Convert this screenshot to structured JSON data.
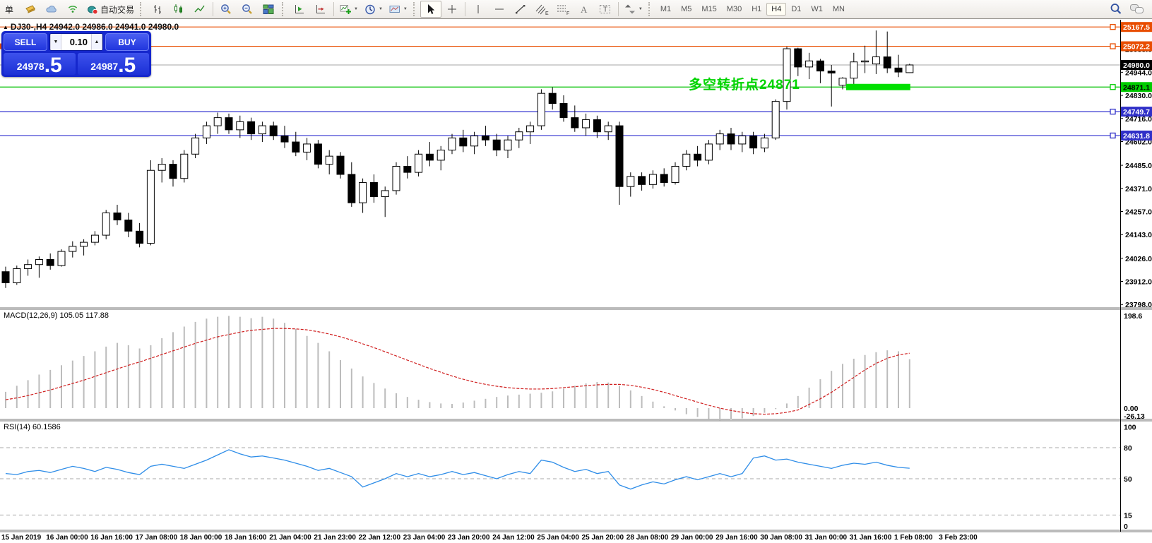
{
  "toolbar": {
    "new_order_label": "单",
    "autotrade_label": "自动交易",
    "timeframes": [
      "M1",
      "M5",
      "M15",
      "M30",
      "H1",
      "H4",
      "D1",
      "W1",
      "MN"
    ],
    "active_timeframe": "H4",
    "glyphs": {
      "channel": "E",
      "fibo": "F",
      "text": "A",
      "label": "T"
    }
  },
  "trade_panel": {
    "sell_label": "SELL",
    "buy_label": "BUY",
    "volume": "0.10",
    "sell_price_main": "24978",
    "sell_price_big": ".5",
    "buy_price_main": "24987",
    "buy_price_big": ".5"
  },
  "chart": {
    "title": "DJ30-,H4  24942.0 24986.0 24941.0 24980.0",
    "symbol": "DJ30-",
    "period": "H4",
    "ohlc": {
      "open": "24942.0",
      "high": "24986.0",
      "low": "24941.0",
      "close": "24980.0"
    },
    "annotation": {
      "text": "多空转折点24871",
      "color": "#00D400"
    },
    "highlight_bar": {
      "start_index": 75,
      "end_index": 81,
      "price": 24871.1,
      "color": "#00E000"
    },
    "hlines": [
      {
        "price": 25167.5,
        "label": "25167.5",
        "color": "#E84D00",
        "line_color": "#E84D00",
        "text_color": "#ffffff",
        "handle": true
      },
      {
        "price": 25072.2,
        "label": "25072.2",
        "color": "#E84D00",
        "line_color": "#E84D00",
        "text_color": "#ffffff",
        "handle": true
      },
      {
        "price": 24980.0,
        "label": "24980.0",
        "color": "#000000",
        "line_color": "#B8B8B8",
        "text_color": "#ffffff",
        "handle": false
      },
      {
        "price": 24871.1,
        "label": "24871.1",
        "color": "#00CC00",
        "line_color": "#00C000",
        "text_color": "#000000",
        "handle": true
      },
      {
        "price": 24749.7,
        "label": "24749.7",
        "color": "#3030C8",
        "line_color": "#3535D0",
        "text_color": "#ffffff",
        "handle": true
      },
      {
        "price": 24631.8,
        "label": "24631.8",
        "color": "#3030C8",
        "line_color": "#3535D0",
        "text_color": "#ffffff",
        "handle": true
      }
    ],
    "price_ticks": [
      "25058.0",
      "24944.0",
      "24830.0",
      "24716.0",
      "24602.0",
      "24485.0",
      "24371.0",
      "24257.0",
      "24143.0",
      "24026.0",
      "23912.0",
      "23798.0"
    ],
    "price_tick_values": [
      25058,
      24944,
      24830,
      24716,
      24602,
      24485,
      24371,
      24257,
      24143,
      24026,
      23912,
      23798
    ],
    "candles": [
      [
        23960,
        23985,
        23880,
        23905
      ],
      [
        23905,
        23990,
        23895,
        23975
      ],
      [
        23975,
        24020,
        23940,
        23995
      ],
      [
        23995,
        24035,
        23930,
        24020
      ],
      [
        24020,
        24050,
        23970,
        23990
      ],
      [
        23990,
        24070,
        23985,
        24060
      ],
      [
        24060,
        24110,
        24030,
        24085
      ],
      [
        24085,
        24120,
        24040,
        24105
      ],
      [
        24105,
        24160,
        24090,
        24140
      ],
      [
        24140,
        24265,
        24120,
        24250
      ],
      [
        24250,
        24290,
        24190,
        24215
      ],
      [
        24215,
        24250,
        24130,
        24160
      ],
      [
        24160,
        24200,
        24080,
        24100
      ],
      [
        24100,
        24510,
        24090,
        24460
      ],
      [
        24460,
        24520,
        24400,
        24490
      ],
      [
        24490,
        24510,
        24380,
        24420
      ],
      [
        24420,
        24560,
        24400,
        24540
      ],
      [
        24540,
        24640,
        24520,
        24620
      ],
      [
        24620,
        24700,
        24590,
        24680
      ],
      [
        24680,
        24745,
        24640,
        24720
      ],
      [
        24720,
        24740,
        24640,
        24660
      ],
      [
        24660,
        24730,
        24620,
        24700
      ],
      [
        24700,
        24720,
        24610,
        24640
      ],
      [
        24640,
        24700,
        24600,
        24680
      ],
      [
        24680,
        24700,
        24610,
        24630
      ],
      [
        24630,
        24680,
        24570,
        24600
      ],
      [
        24600,
        24650,
        24530,
        24550
      ],
      [
        24550,
        24620,
        24510,
        24590
      ],
      [
        24590,
        24610,
        24470,
        24490
      ],
      [
        24490,
        24560,
        24440,
        24530
      ],
      [
        24530,
        24550,
        24420,
        24440
      ],
      [
        24440,
        24500,
        24280,
        24300
      ],
      [
        24300,
        24420,
        24250,
        24400
      ],
      [
        24400,
        24440,
        24300,
        24330
      ],
      [
        24330,
        24380,
        24230,
        24360
      ],
      [
        24360,
        24500,
        24340,
        24480
      ],
      [
        24480,
        24530,
        24420,
        24450
      ],
      [
        24450,
        24560,
        24430,
        24540
      ],
      [
        24540,
        24600,
        24480,
        24510
      ],
      [
        24510,
        24580,
        24460,
        24560
      ],
      [
        24560,
        24640,
        24540,
        24620
      ],
      [
        24620,
        24660,
        24550,
        24580
      ],
      [
        24580,
        24650,
        24540,
        24630
      ],
      [
        24630,
        24680,
        24580,
        24610
      ],
      [
        24610,
        24640,
        24530,
        24560
      ],
      [
        24560,
        24630,
        24520,
        24610
      ],
      [
        24610,
        24670,
        24570,
        24650
      ],
      [
        24650,
        24700,
        24590,
        24680
      ],
      [
        24680,
        24860,
        24660,
        24840
      ],
      [
        24840,
        24870,
        24760,
        24790
      ],
      [
        24790,
        24830,
        24700,
        24720
      ],
      [
        24720,
        24780,
        24650,
        24670
      ],
      [
        24670,
        24740,
        24630,
        24710
      ],
      [
        24710,
        24730,
        24620,
        24650
      ],
      [
        24650,
        24700,
        24610,
        24680
      ],
      [
        24680,
        24700,
        24290,
        24380
      ],
      [
        24380,
        24450,
        24330,
        24430
      ],
      [
        24430,
        24450,
        24360,
        24390
      ],
      [
        24390,
        24460,
        24370,
        24440
      ],
      [
        24440,
        24470,
        24380,
        24400
      ],
      [
        24400,
        24500,
        24390,
        24480
      ],
      [
        24480,
        24560,
        24460,
        24540
      ],
      [
        24540,
        24580,
        24480,
        24510
      ],
      [
        24510,
        24610,
        24490,
        24590
      ],
      [
        24590,
        24660,
        24560,
        24640
      ],
      [
        24640,
        24670,
        24560,
        24590
      ],
      [
        24590,
        24650,
        24550,
        24630
      ],
      [
        24630,
        24650,
        24540,
        24570
      ],
      [
        24570,
        24640,
        24550,
        24620
      ],
      [
        24620,
        24810,
        24610,
        24800
      ],
      [
        24800,
        25070,
        24760,
        25060
      ],
      [
        25060,
        25065,
        24925,
        24970
      ],
      [
        24970,
        25040,
        24910,
        25000
      ],
      [
        25000,
        25010,
        24890,
        24950
      ],
      [
        24950,
        24980,
        24775,
        24940
      ],
      [
        24880,
        24920,
        24860,
        24915
      ],
      [
        24915,
        25040,
        24880,
        24995
      ],
      [
        24995,
        25075,
        24940,
        25000
      ],
      [
        24985,
        25150,
        24935,
        25020
      ],
      [
        25020,
        25145,
        24940,
        24965
      ],
      [
        24965,
        25030,
        24920,
        24945
      ],
      [
        24942,
        24986,
        24941,
        24980
      ]
    ]
  },
  "macd": {
    "label": "MACD(12,26,9) 105.05 117.88",
    "axis_labels": [
      {
        "v": 198.6,
        "t": "198.6"
      },
      {
        "v": 0,
        "t": "0.00"
      },
      {
        "v": -26.13,
        "t": "-26.13"
      }
    ],
    "histogram": [
      35,
      48,
      60,
      72,
      82,
      92,
      102,
      112,
      122,
      132,
      140,
      135,
      128,
      135,
      150,
      163,
      175,
      185,
      192,
      196,
      198,
      196,
      193,
      196,
      192,
      183,
      170,
      155,
      140,
      122,
      103,
      85,
      68,
      54,
      42,
      32,
      24,
      18,
      13,
      10,
      9,
      12,
      16,
      20,
      24,
      27,
      29,
      31,
      33,
      36,
      42,
      48,
      53,
      56,
      55,
      48,
      38,
      26,
      14,
      4,
      -5,
      -13,
      -19,
      -23,
      -26,
      -25,
      -22,
      -17,
      -10,
      -2,
      10,
      26,
      44,
      62,
      80,
      95,
      106,
      114,
      120,
      124,
      122,
      105
    ],
    "signal": [
      18,
      22,
      27,
      33,
      39,
      46,
      53,
      60,
      68,
      76,
      84,
      92,
      99,
      107,
      115,
      123,
      131,
      139,
      146,
      153,
      158,
      163,
      167,
      169,
      171,
      171,
      170,
      168,
      164,
      159,
      153,
      146,
      138,
      130,
      121,
      112,
      103,
      94,
      85,
      77,
      69,
      62,
      56,
      51,
      47,
      44,
      42,
      41,
      41,
      42,
      44,
      46,
      48,
      50,
      51,
      51,
      49,
      45,
      40,
      34,
      27,
      20,
      13,
      6,
      0,
      -5,
      -9,
      -12,
      -13,
      -12,
      -9,
      -4,
      8,
      20,
      34,
      50,
      66,
      82,
      96,
      107,
      114,
      117.88
    ]
  },
  "rsi": {
    "label": "RSI(14) 60.1586",
    "axis_labels": [
      {
        "v": 100,
        "t": "100"
      },
      {
        "v": 80,
        "t": "80"
      },
      {
        "v": 50,
        "t": "50"
      },
      {
        "v": 15,
        "t": "15"
      },
      {
        "v": 0,
        "t": "0"
      }
    ],
    "levels": [
      80,
      50,
      15
    ],
    "values": [
      55,
      54,
      57,
      58,
      56,
      59,
      62,
      60,
      57,
      61,
      59,
      56,
      54,
      62,
      64,
      62,
      60,
      64,
      68,
      73,
      78,
      74,
      71,
      72,
      70,
      68,
      65,
      62,
      58,
      60,
      56,
      52,
      42,
      46,
      50,
      55,
      52,
      55,
      52,
      54,
      57,
      54,
      56,
      53,
      50,
      54,
      57,
      55,
      68,
      66,
      61,
      57,
      59,
      55,
      57,
      44,
      40,
      44,
      47,
      45,
      49,
      52,
      49,
      52,
      55,
      52,
      55,
      70,
      72,
      68,
      69,
      66,
      64,
      62,
      60,
      63,
      65,
      64,
      66,
      63,
      61,
      60.16
    ]
  },
  "time_axis": {
    "labels": [
      "15 Jan 2019",
      "16 Jan 00:00",
      "16 Jan 16:00",
      "17 Jan 08:00",
      "18 Jan 00:00",
      "18 Jan 16:00",
      "21 Jan 04:00",
      "21 Jan 23:00",
      "22 Jan 12:00",
      "23 Jan 04:00",
      "23 Jan 20:00",
      "24 Jan 12:00",
      "25 Jan 04:00",
      "25 Jan 20:00",
      "28 Jan 08:00",
      "29 Jan 00:00",
      "29 Jan 16:00",
      "30 Jan 08:00",
      "31 Jan 00:00",
      "31 Jan 16:00",
      "1 Feb 08:00",
      "3 Feb 23:00"
    ]
  }
}
